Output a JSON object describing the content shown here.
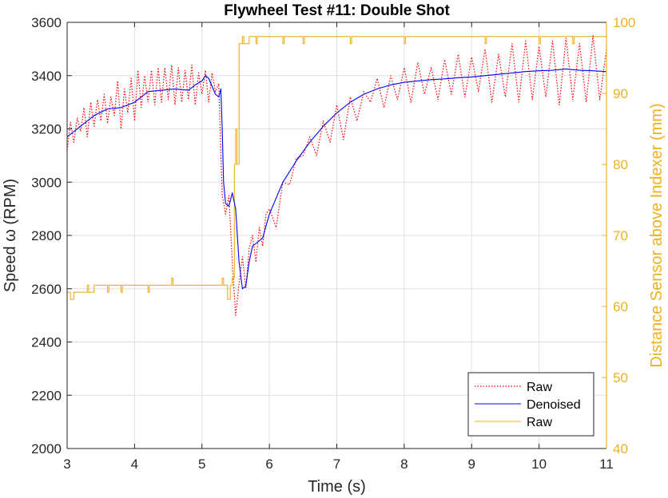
{
  "chart_data": {
    "type": "line",
    "title": "Flywheel Test #11: Double Shot",
    "xlabel": "Time (s)",
    "ylabel": "Speed ω (RPM)",
    "y2label": "Distance Sensor above Indexer (mm)",
    "xlim": [
      3,
      11
    ],
    "ylim": [
      2000,
      3600
    ],
    "y2lim": [
      40,
      100
    ],
    "xticks": [
      "3",
      "4",
      "5",
      "6",
      "7",
      "8",
      "9",
      "10",
      "11"
    ],
    "yticks": [
      "2000",
      "2200",
      "2400",
      "2600",
      "2800",
      "3000",
      "3200",
      "3400",
      "3600"
    ],
    "y2ticks": [
      "40",
      "50",
      "60",
      "70",
      "80",
      "90",
      "100"
    ],
    "grid": true,
    "legend_position": "bottom-right",
    "colors": {
      "raw_speed": "#FF0000",
      "denoised": "#0000FF",
      "raw_distance": "#EDB120",
      "axis": "#262626",
      "grid": "#DFDFDF"
    },
    "series": [
      {
        "name": "Raw",
        "axis": "left",
        "style": "dotted",
        "color": "#FF0000",
        "x": [
          3.0,
          3.05,
          3.1,
          3.15,
          3.2,
          3.25,
          3.3,
          3.35,
          3.4,
          3.45,
          3.5,
          3.55,
          3.6,
          3.65,
          3.7,
          3.75,
          3.8,
          3.85,
          3.9,
          3.95,
          4.0,
          4.05,
          4.1,
          4.15,
          4.2,
          4.25,
          4.3,
          4.35,
          4.4,
          4.45,
          4.5,
          4.55,
          4.6,
          4.65,
          4.7,
          4.75,
          4.8,
          4.85,
          4.9,
          4.95,
          5.0,
          5.05,
          5.1,
          5.15,
          5.2,
          5.25,
          5.3,
          5.35,
          5.4,
          5.45,
          5.5,
          5.55,
          5.6,
          5.65,
          5.7,
          5.75,
          5.8,
          5.85,
          5.9,
          5.95,
          6.0,
          6.1,
          6.2,
          6.3,
          6.4,
          6.5,
          6.6,
          6.7,
          6.8,
          6.9,
          7.0,
          7.1,
          7.2,
          7.3,
          7.4,
          7.5,
          7.6,
          7.7,
          7.8,
          7.9,
          8.0,
          8.1,
          8.2,
          8.3,
          8.4,
          8.5,
          8.6,
          8.7,
          8.8,
          8.9,
          9.0,
          9.1,
          9.2,
          9.3,
          9.4,
          9.5,
          9.6,
          9.7,
          9.8,
          9.9,
          10.0,
          10.1,
          10.2,
          10.3,
          10.4,
          10.5,
          10.6,
          10.7,
          10.8,
          10.9,
          11.0
        ],
        "y": [
          3120,
          3225,
          3150,
          3240,
          3190,
          3280,
          3170,
          3300,
          3210,
          3310,
          3230,
          3330,
          3220,
          3320,
          3250,
          3380,
          3200,
          3350,
          3260,
          3390,
          3230,
          3420,
          3280,
          3400,
          3300,
          3420,
          3290,
          3430,
          3300,
          3430,
          3310,
          3440,
          3290,
          3430,
          3300,
          3420,
          3310,
          3440,
          3290,
          3410,
          3330,
          3420,
          3300,
          3410,
          3340,
          3370,
          2950,
          2880,
          2950,
          2700,
          2500,
          2620,
          2720,
          2600,
          2750,
          2800,
          2700,
          2830,
          2760,
          2880,
          2900,
          2830,
          3000,
          2990,
          3090,
          3100,
          3170,
          3100,
          3230,
          3150,
          3290,
          3160,
          3320,
          3230,
          3340,
          3300,
          3390,
          3280,
          3400,
          3310,
          3430,
          3300,
          3450,
          3330,
          3430,
          3310,
          3460,
          3330,
          3480,
          3320,
          3470,
          3340,
          3500,
          3300,
          3480,
          3320,
          3520,
          3300,
          3530,
          3310,
          3510,
          3320,
          3530,
          3290,
          3540,
          3310,
          3520,
          3300,
          3550,
          3310,
          3500
        ]
      },
      {
        "name": "Denoised",
        "axis": "left",
        "style": "solid",
        "color": "#0000FF",
        "x": [
          3.0,
          3.2,
          3.4,
          3.6,
          3.8,
          4.0,
          4.2,
          4.4,
          4.6,
          4.8,
          4.9,
          5.0,
          5.05,
          5.1,
          5.15,
          5.2,
          5.25,
          5.28,
          5.3,
          5.32,
          5.35,
          5.4,
          5.45,
          5.5,
          5.55,
          5.6,
          5.65,
          5.7,
          5.75,
          5.8,
          5.9,
          6.0,
          6.2,
          6.4,
          6.6,
          6.8,
          7.0,
          7.2,
          7.4,
          7.6,
          7.8,
          8.0,
          8.2,
          8.4,
          8.6,
          8.8,
          9.0,
          9.2,
          9.4,
          9.6,
          9.8,
          10.0,
          10.2,
          10.4,
          10.6,
          10.8,
          11.0
        ],
        "y": [
          3170,
          3210,
          3250,
          3275,
          3280,
          3300,
          3340,
          3345,
          3350,
          3345,
          3365,
          3380,
          3400,
          3390,
          3360,
          3330,
          3320,
          3350,
          3200,
          3000,
          2920,
          2910,
          2960,
          2900,
          2700,
          2600,
          2610,
          2700,
          2760,
          2770,
          2790,
          2880,
          3000,
          3080,
          3150,
          3210,
          3260,
          3300,
          3330,
          3350,
          3365,
          3375,
          3380,
          3385,
          3388,
          3392,
          3395,
          3400,
          3405,
          3410,
          3415,
          3418,
          3420,
          3425,
          3420,
          3418,
          3415
        ]
      },
      {
        "name": "Raw",
        "axis": "right",
        "style": "solid",
        "color": "#EDB120",
        "x": [
          3.0,
          3.05,
          3.05,
          3.1,
          3.1,
          3.3,
          3.3,
          3.32,
          3.32,
          3.4,
          3.4,
          3.6,
          3.6,
          3.62,
          3.62,
          3.8,
          3.8,
          3.82,
          3.82,
          4.2,
          4.2,
          4.22,
          4.22,
          4.55,
          4.55,
          4.57,
          4.57,
          5.3,
          5.3,
          5.32,
          5.32,
          5.38,
          5.38,
          5.42,
          5.42,
          5.45,
          5.45,
          5.48,
          5.48,
          5.5,
          5.5,
          5.52,
          5.52,
          5.55,
          5.55,
          5.6,
          5.6,
          5.62,
          5.62,
          5.7,
          5.7,
          5.8,
          5.8,
          5.82,
          5.82,
          6.2,
          6.2,
          6.22,
          6.22,
          6.5,
          6.5,
          6.52,
          6.52,
          7.2,
          7.2,
          7.22,
          7.22,
          8.0,
          8.0,
          8.02,
          8.02,
          9.2,
          9.2,
          9.22,
          9.22,
          10.0,
          10.0,
          10.02,
          10.02,
          10.5,
          10.5,
          10.52,
          10.52,
          11.0
        ],
        "y": [
          62,
          62,
          61,
          61,
          62,
          62,
          63,
          63,
          62,
          62,
          63,
          63,
          62,
          62,
          63,
          63,
          62,
          62,
          63,
          63,
          62,
          62,
          63,
          63,
          64,
          64,
          63,
          63,
          64,
          64,
          63,
          63,
          61,
          61,
          63,
          63,
          64,
          64,
          80,
          80,
          85,
          85,
          80,
          80,
          97,
          97,
          98,
          98,
          97,
          97,
          98,
          98,
          97,
          97,
          98,
          98,
          97,
          97,
          98,
          98,
          97,
          97,
          98,
          98,
          97,
          97,
          98,
          98,
          97,
          97,
          98,
          98,
          97,
          97,
          98,
          98,
          97,
          97,
          98,
          98,
          97,
          97,
          98,
          98
        ]
      }
    ]
  }
}
